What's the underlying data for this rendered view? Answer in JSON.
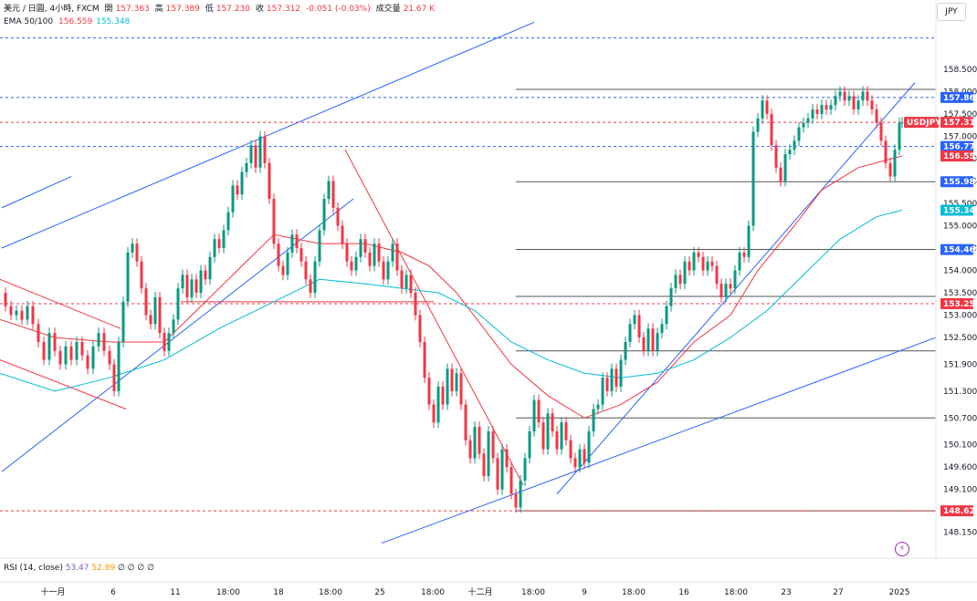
{
  "header": {
    "symbol_line": "美元 / 日圓, 4小時, FXCM",
    "open_label": "開",
    "open": "157.363",
    "high_label": "高",
    "high": "157.389",
    "low_label": "低",
    "low": "157.230",
    "close_label": "收",
    "close": "157.312",
    "change": "-0.051 (-0.03%)",
    "volume_label": "成交量",
    "volume": "21.67 K",
    "ema_label": "EMA 50/100",
    "ema50": "156.559",
    "ema100": "155.348"
  },
  "currency_button": "JPY",
  "rsi_legend": {
    "label": "RSI (14, close)",
    "value1": "53.47",
    "value2": "52.89",
    "extra": "∅ ∅ ∅ ∅"
  },
  "chart_data": {
    "type": "candlestick",
    "title": "美元 / 日圓, 4小時, FXCM",
    "y_axis": {
      "range": [
        147.85,
        159.6
      ],
      "ticks": [
        158.5,
        158.0,
        157.5,
        157.0,
        156.5,
        156.0,
        155.5,
        155.0,
        154.5,
        154.0,
        153.5,
        153.0,
        152.5,
        151.9,
        151.3,
        150.7,
        150.1,
        149.6,
        149.1,
        148.15
      ],
      "tick_labels": [
        "158.500",
        "158.000",
        "157.500",
        "157.000",
        "156.500",
        "156.000",
        "155.500",
        "155.000",
        "154.500",
        "154.000",
        "153.500",
        "153.000",
        "152.500",
        "151.900",
        "151.300",
        "150.700",
        "150.100",
        "149.600",
        "149.100",
        "148.150"
      ]
    },
    "x_axis": {
      "labels": [
        "十一月",
        "6",
        "11",
        "18:00",
        "18",
        "18:00",
        "25",
        "18:00",
        "十二月",
        "18:00",
        "9",
        "18:00",
        "16",
        "18:00",
        "23",
        "27",
        "2025"
      ]
    },
    "price_labels": [
      {
        "value": "157.869",
        "color": "#2962ff"
      },
      {
        "value": "157.312",
        "color": "#f23645",
        "symbol": "USDJPY"
      },
      {
        "value": "156.773",
        "color": "#2962ff"
      },
      {
        "value": "156.559",
        "color": "#f23645"
      },
      {
        "value": "155.985",
        "color": "#2962ff"
      },
      {
        "value": "155.348",
        "color": "#00bcd4"
      },
      {
        "value": "154.468",
        "color": "#2962ff"
      },
      {
        "value": "153.255",
        "color": "#f23645"
      },
      {
        "value": "148.623",
        "color": "#f23645"
      }
    ],
    "horizontal_levels": [
      158.05,
      155.985,
      154.47,
      153.42,
      152.2,
      150.7,
      148.623
    ],
    "dashed_levels": [
      {
        "value": 159.2,
        "color": "#2962ff"
      },
      {
        "value": 157.869,
        "color": "#2962ff"
      },
      {
        "value": 157.312,
        "color": "#f23645"
      },
      {
        "value": 156.773,
        "color": "#2962ff"
      },
      {
        "value": 153.255,
        "color": "#f23645"
      },
      {
        "value": 148.623,
        "color": "#f23645"
      }
    ],
    "close_path": [
      [
        0,
        153.5
      ],
      [
        6,
        153.2
      ],
      [
        12,
        153.0
      ],
      [
        18,
        153.1
      ],
      [
        24,
        152.9
      ],
      [
        30,
        153.2
      ],
      [
        36,
        152.8
      ],
      [
        42,
        152.4
      ],
      [
        48,
        152.0
      ],
      [
        54,
        152.6
      ],
      [
        60,
        152.2
      ],
      [
        66,
        151.9
      ],
      [
        72,
        152.3
      ],
      [
        78,
        152.0
      ],
      [
        84,
        152.4
      ],
      [
        90,
        152.1
      ],
      [
        96,
        151.8
      ],
      [
        102,
        152.3
      ],
      [
        108,
        152.6
      ],
      [
        114,
        152.2
      ],
      [
        120,
        151.9
      ],
      [
        125,
        151.3
      ],
      [
        130,
        152.4
      ],
      [
        135,
        153.3
      ],
      [
        140,
        154.4
      ],
      [
        145,
        154.6
      ],
      [
        150,
        154.2
      ],
      [
        155,
        153.6
      ],
      [
        160,
        153.0
      ],
      [
        165,
        152.8
      ],
      [
        170,
        153.4
      ],
      [
        175,
        152.6
      ],
      [
        180,
        152.2
      ],
      [
        185,
        152.6
      ],
      [
        190,
        152.9
      ],
      [
        195,
        153.6
      ],
      [
        200,
        153.9
      ],
      [
        205,
        153.4
      ],
      [
        210,
        153.8
      ],
      [
        215,
        153.5
      ],
      [
        220,
        154.0
      ],
      [
        225,
        153.8
      ],
      [
        230,
        154.3
      ],
      [
        235,
        154.7
      ],
      [
        240,
        154.5
      ],
      [
        245,
        154.9
      ],
      [
        250,
        155.3
      ],
      [
        255,
        155.9
      ],
      [
        260,
        155.7
      ],
      [
        265,
        156.2
      ],
      [
        270,
        156.4
      ],
      [
        275,
        156.8
      ],
      [
        280,
        156.3
      ],
      [
        285,
        157.0
      ],
      [
        290,
        156.4
      ],
      [
        295,
        155.6
      ],
      [
        300,
        154.6
      ],
      [
        305,
        154.1
      ],
      [
        310,
        153.9
      ],
      [
        315,
        154.4
      ],
      [
        320,
        154.8
      ],
      [
        325,
        154.5
      ],
      [
        330,
        154.2
      ],
      [
        335,
        153.8
      ],
      [
        340,
        153.5
      ],
      [
        345,
        154.2
      ],
      [
        350,
        154.9
      ],
      [
        355,
        155.6
      ],
      [
        360,
        156.0
      ],
      [
        365,
        155.4
      ],
      [
        370,
        155.0
      ],
      [
        375,
        154.6
      ],
      [
        380,
        154.2
      ],
      [
        385,
        154.0
      ],
      [
        390,
        154.3
      ],
      [
        395,
        154.7
      ],
      [
        400,
        154.4
      ],
      [
        405,
        154.1
      ],
      [
        410,
        154.6
      ],
      [
        415,
        154.2
      ],
      [
        420,
        153.8
      ],
      [
        425,
        154.2
      ],
      [
        430,
        154.6
      ],
      [
        435,
        154.0
      ],
      [
        440,
        153.6
      ],
      [
        445,
        153.9
      ],
      [
        450,
        153.5
      ],
      [
        455,
        153.0
      ],
      [
        460,
        152.4
      ],
      [
        465,
        151.6
      ],
      [
        470,
        151.0
      ],
      [
        475,
        150.6
      ],
      [
        480,
        151.4
      ],
      [
        485,
        151.0
      ],
      [
        490,
        151.8
      ],
      [
        495,
        151.3
      ],
      [
        500,
        151.7
      ],
      [
        505,
        151.0
      ],
      [
        510,
        150.2
      ],
      [
        515,
        149.8
      ],
      [
        520,
        150.5
      ],
      [
        525,
        149.9
      ],
      [
        530,
        149.4
      ],
      [
        535,
        150.4
      ],
      [
        540,
        149.8
      ],
      [
        545,
        149.1
      ],
      [
        550,
        150.0
      ],
      [
        555,
        149.6
      ],
      [
        560,
        149.0
      ],
      [
        565,
        148.7
      ],
      [
        570,
        149.3
      ],
      [
        575,
        149.8
      ],
      [
        580,
        150.4
      ],
      [
        585,
        151.1
      ],
      [
        590,
        150.6
      ],
      [
        595,
        150.0
      ],
      [
        600,
        150.8
      ],
      [
        605,
        150.4
      ],
      [
        610,
        150.0
      ],
      [
        615,
        150.6
      ],
      [
        620,
        150.2
      ],
      [
        625,
        149.8
      ],
      [
        630,
        149.6
      ],
      [
        635,
        150.0
      ],
      [
        640,
        149.7
      ],
      [
        645,
        150.4
      ],
      [
        650,
        150.9
      ],
      [
        655,
        151.0
      ],
      [
        660,
        151.6
      ],
      [
        665,
        151.3
      ],
      [
        670,
        151.8
      ],
      [
        675,
        151.4
      ],
      [
        680,
        152.0
      ],
      [
        685,
        152.4
      ],
      [
        690,
        152.8
      ],
      [
        695,
        153.0
      ],
      [
        700,
        152.5
      ],
      [
        705,
        152.2
      ],
      [
        710,
        152.7
      ],
      [
        715,
        152.2
      ],
      [
        720,
        152.6
      ],
      [
        725,
        152.8
      ],
      [
        730,
        153.2
      ],
      [
        735,
        153.6
      ],
      [
        740,
        153.9
      ],
      [
        745,
        153.7
      ],
      [
        750,
        154.2
      ],
      [
        755,
        154.0
      ],
      [
        760,
        154.4
      ],
      [
        765,
        154.3
      ],
      [
        770,
        154.0
      ],
      [
        775,
        154.2
      ],
      [
        780,
        154.1
      ],
      [
        785,
        153.7
      ],
      [
        790,
        153.4
      ],
      [
        795,
        153.7
      ],
      [
        800,
        153.6
      ],
      [
        805,
        154.0
      ],
      [
        810,
        154.4
      ],
      [
        815,
        154.3
      ],
      [
        820,
        155.0
      ],
      [
        825,
        157.1
      ],
      [
        830,
        157.4
      ],
      [
        835,
        157.8
      ],
      [
        840,
        157.5
      ],
      [
        845,
        156.8
      ],
      [
        850,
        156.3
      ],
      [
        855,
        156.0
      ],
      [
        860,
        156.6
      ],
      [
        865,
        156.7
      ],
      [
        870,
        156.9
      ],
      [
        875,
        157.2
      ],
      [
        880,
        157.3
      ],
      [
        885,
        157.4
      ],
      [
        890,
        157.6
      ],
      [
        895,
        157.5
      ],
      [
        900,
        157.7
      ],
      [
        905,
        157.6
      ],
      [
        910,
        157.7
      ],
      [
        915,
        157.9
      ],
      [
        920,
        158.0
      ],
      [
        925,
        157.8
      ],
      [
        930,
        157.9
      ],
      [
        935,
        157.6
      ],
      [
        940,
        157.8
      ],
      [
        945,
        158.0
      ],
      [
        950,
        157.8
      ],
      [
        955,
        157.6
      ],
      [
        960,
        157.3
      ],
      [
        965,
        156.9
      ],
      [
        970,
        156.4
      ],
      [
        975,
        156.1
      ],
      [
        980,
        156.7
      ],
      [
        985,
        157.3
      ],
      [
        988,
        157.31
      ]
    ],
    "ema50_path": [
      [
        0,
        152.9
      ],
      [
        60,
        152.5
      ],
      [
        120,
        152.4
      ],
      [
        180,
        152.4
      ],
      [
        240,
        153.6
      ],
      [
        300,
        154.8
      ],
      [
        350,
        154.6
      ],
      [
        400,
        154.6
      ],
      [
        440,
        154.4
      ],
      [
        470,
        154.1
      ],
      [
        500,
        153.5
      ],
      [
        530,
        152.7
      ],
      [
        560,
        151.9
      ],
      [
        600,
        151.2
      ],
      [
        640,
        150.7
      ],
      [
        680,
        151.0
      ],
      [
        720,
        151.5
      ],
      [
        760,
        152.4
      ],
      [
        800,
        153.0
      ],
      [
        830,
        154.0
      ],
      [
        870,
        155.0
      ],
      [
        900,
        155.8
      ],
      [
        940,
        156.3
      ],
      [
        988,
        156.56
      ]
    ],
    "ema100_path": [
      [
        0,
        151.7
      ],
      [
        60,
        151.3
      ],
      [
        120,
        151.6
      ],
      [
        180,
        152.0
      ],
      [
        240,
        152.7
      ],
      [
        300,
        153.3
      ],
      [
        350,
        153.8
      ],
      [
        400,
        153.7
      ],
      [
        440,
        153.6
      ],
      [
        480,
        153.5
      ],
      [
        520,
        153.1
      ],
      [
        560,
        152.4
      ],
      [
        600,
        152.0
      ],
      [
        640,
        151.7
      ],
      [
        680,
        151.6
      ],
      [
        720,
        151.7
      ],
      [
        760,
        152.0
      ],
      [
        800,
        152.5
      ],
      [
        840,
        153.1
      ],
      [
        880,
        153.9
      ],
      [
        920,
        154.7
      ],
      [
        960,
        155.2
      ],
      [
        988,
        155.348
      ]
    ],
    "trendlines": [
      {
        "color": "#2962ff",
        "points": [
          [
            2,
            154.5
          ],
          [
            585,
            159.55
          ]
        ]
      },
      {
        "color": "#2962ff",
        "points": [
          [
            2,
            155.4
          ],
          [
            78,
            156.1
          ]
        ]
      },
      {
        "color": "#2962ff",
        "points": [
          [
            2,
            149.5
          ],
          [
            387,
            155.6
          ]
        ]
      },
      {
        "color": "#2962ff",
        "points": [
          [
            610,
            149.0
          ],
          [
            1002,
            158.2
          ]
        ]
      },
      {
        "color": "#2962ff",
        "points": [
          [
            418,
            147.9
          ],
          [
            1025,
            152.5
          ]
        ]
      },
      {
        "color": "#f23645",
        "points": [
          [
            0,
            153.8
          ],
          [
            132,
            152.7
          ]
        ]
      },
      {
        "color": "#f23645",
        "points": [
          [
            0,
            152.0
          ],
          [
            138,
            150.9
          ]
        ]
      },
      {
        "color": "#f23645",
        "points": [
          [
            378,
            156.7
          ],
          [
            573,
            149.2
          ]
        ]
      },
      {
        "color": "#f23645",
        "points": [
          [
            198,
            153.3
          ],
          [
            475,
            153.3
          ]
        ]
      }
    ],
    "rsi_legend": "RSI (14, close) 53.47 52.89"
  }
}
